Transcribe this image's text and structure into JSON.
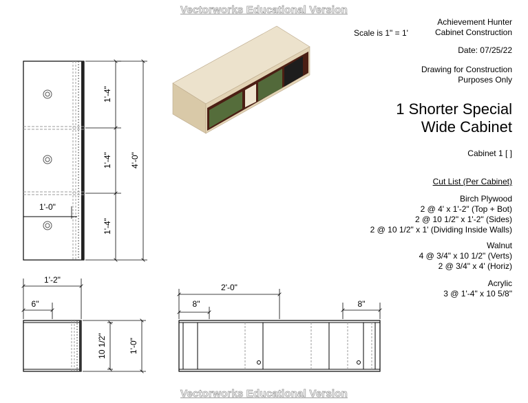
{
  "watermark": "Vectorworks Educational Version",
  "scale": "Scale is 1\" = 1'",
  "title_block": {
    "client": [
      "Achievement Hunter",
      "Cabinet Construction"
    ],
    "date": "Date: 07/25/22",
    "purpose": [
      "Drawing for Construction",
      "Purposes Only"
    ],
    "title": [
      "1 Shorter Special",
      "Wide Cabinet"
    ],
    "cabinet_id": "Cabinet 1 [  ]"
  },
  "cut_list": {
    "heading": "Cut List (Per Cabinet)",
    "groups": [
      {
        "material": "Birch Plywood",
        "items": [
          "2 @ 4' x 1'-2\" (Top + Bot)",
          "2 @ 10 1/2\" x 1'-2\" (Sides)",
          "2 @ 10 1/2\" x 1' (Dividing Inside Walls)"
        ]
      },
      {
        "material": "Walnut",
        "items": [
          "4 @ 3/4\" x 10 1/2\" (Verts)",
          "2 @ 3/4\" x 4' (Horiz)"
        ]
      },
      {
        "material": "Acrylic",
        "items": [
          "3 @ 1'-4\" x 10 5/8\""
        ]
      }
    ]
  },
  "dimensions": {
    "front_section": "1'-4\"",
    "front_total": "4'-0\"",
    "front_width": "1'-0\"",
    "side_depth": "1'-2\"",
    "side_inset": "6\"",
    "side_inner_height": "10 1/2\"",
    "side_height": "1'-0\"",
    "top_half": "2'-0\"",
    "top_left_offset": "8\"",
    "top_right_offset": "8\""
  },
  "colors": {
    "wood": "#e3d6bd",
    "acrylic": "#4f6a39",
    "walnut": "#5a2b18",
    "line": "#000000",
    "hidden": "#9b9b9b"
  }
}
